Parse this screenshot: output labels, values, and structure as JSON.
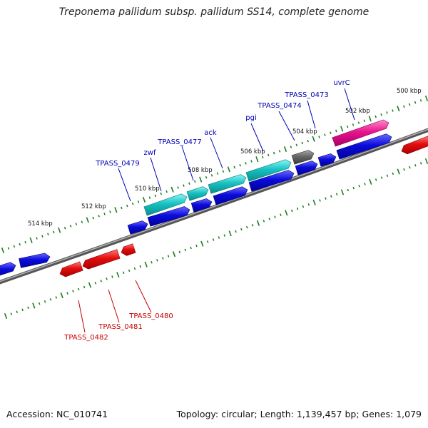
{
  "title": "Treponema pallidum subsp. pallidum SS14, complete genome",
  "footer": {
    "accession": "Accession: NC_010741",
    "summary": "Topology: circular; Length: 1,139,457 bp; Genes: 1,079"
  },
  "colors": {
    "background": "#ffffff",
    "backbone": "#7a7a7a",
    "ticks": "#1e7a1e",
    "blue_gene": "#0b0bdc",
    "red_gene": "#e30d0d",
    "cyan_gene": "#18c2c2",
    "pink_gene": "#e8148e",
    "gray_gene": "#666666",
    "label_blue": "#0000b4",
    "label_red": "#c80000"
  },
  "kbp_labels": [
    "500 kbp",
    "502 kbp",
    "504 kbp",
    "506 kbp",
    "508 kbp",
    "510 kbp",
    "512 kbp",
    "514 kbp"
  ],
  "gene_labels_forward": [
    "uvrC",
    "TPASS_0473",
    "TPASS_0474",
    "pgi",
    "ack",
    "TPASS_0477",
    "zwf",
    "TPASS_0479"
  ],
  "gene_labels_reverse": [
    "TPASS_0480",
    "TPASS_0481",
    "TPASS_0482"
  ]
}
